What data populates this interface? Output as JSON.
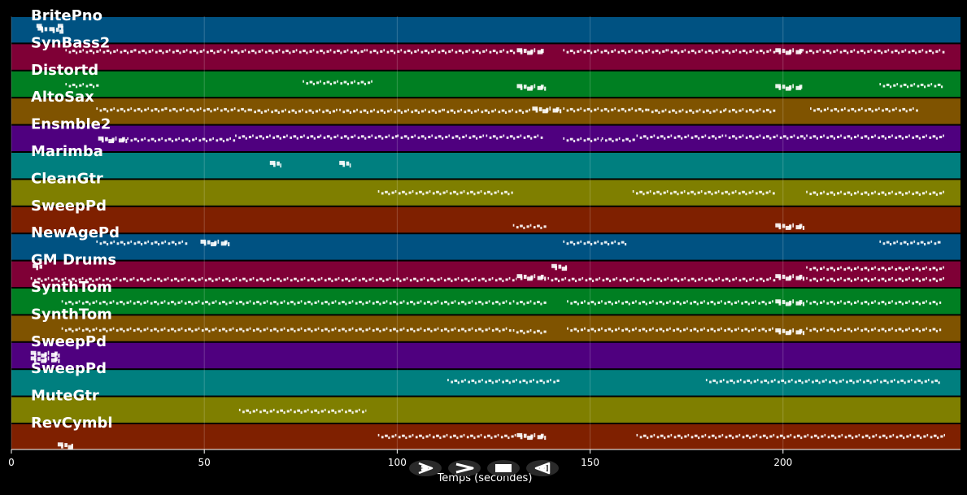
{
  "chart_data": {
    "type": "timeline",
    "xlabel": "Temps (secondes)",
    "xlim": [
      0,
      246
    ],
    "xticks": [
      0,
      50,
      100,
      150,
      200
    ],
    "grid": true,
    "tracks": [
      {
        "name": "BritePno",
        "color": "#005282",
        "notes": [
          [
            6.8,
            9.3,
            0.5
          ],
          [
            9.8,
            13.5,
            0.52
          ],
          [
            12,
            13.5,
            0.4
          ],
          [
            6.5,
            8.4,
            0.4
          ]
        ]
      },
      {
        "name": "SynBass2",
        "color": "#7f0036",
        "notes": [
          [
            14,
            32,
            0.3
          ],
          [
            32,
            56,
            0.3
          ],
          [
            56,
            92,
            0.3
          ],
          [
            92,
            131,
            0.3
          ],
          [
            131,
            138,
            0.3
          ],
          [
            143,
            170,
            0.3
          ],
          [
            170,
            198,
            0.3
          ],
          [
            198,
            205,
            0.3
          ],
          [
            205,
            242,
            0.3
          ]
        ]
      },
      {
        "name": "Distortd",
        "color": "#007f22",
        "notes": [
          [
            14,
            23,
            0.55
          ],
          [
            75.5,
            94,
            0.45
          ],
          [
            131,
            139,
            0.62
          ],
          [
            198,
            205,
            0.62
          ],
          [
            225,
            242,
            0.55
          ]
        ]
      },
      {
        "name": "AltoSax",
        "color": "#7f5300",
        "notes": [
          [
            22,
            40,
            0.45
          ],
          [
            40,
            62,
            0.45
          ],
          [
            62,
            85,
            0.5
          ],
          [
            85,
            112,
            0.5
          ],
          [
            112,
            135,
            0.5
          ],
          [
            135,
            143,
            0.45
          ],
          [
            143,
            165,
            0.45
          ],
          [
            165,
            185,
            0.5
          ],
          [
            185,
            198,
            0.48
          ],
          [
            207,
            235,
            0.45
          ]
        ]
      },
      {
        "name": "Ensmble2",
        "color": "#4f007f",
        "notes": [
          [
            22.5,
            30,
            0.55
          ],
          [
            30,
            58,
            0.55
          ],
          [
            58,
            80,
            0.45
          ],
          [
            80,
            100,
            0.45
          ],
          [
            100,
            123,
            0.45
          ],
          [
            123,
            138,
            0.45
          ],
          [
            143,
            153,
            0.55
          ],
          [
            153,
            162,
            0.55
          ],
          [
            162,
            185,
            0.45
          ],
          [
            185,
            206,
            0.45
          ],
          [
            206,
            242,
            0.45
          ]
        ]
      },
      {
        "name": "Marimba",
        "color": "#007f7f",
        "notes": [
          [
            67,
            70,
            0.45
          ],
          [
            85,
            88,
            0.45
          ]
        ]
      },
      {
        "name": "CleanGtr",
        "color": "#7f7f00",
        "notes": [
          [
            95,
            130,
            0.5
          ],
          [
            161,
            198,
            0.5
          ],
          [
            206,
            242,
            0.52
          ]
        ]
      },
      {
        "name": "SweepPd",
        "color": "#7f2000",
        "notes": [
          [
            130,
            139,
            0.75
          ],
          [
            198,
            206,
            0.75
          ]
        ]
      },
      {
        "name": "NewAgePd",
        "color": "#005282",
        "notes": [
          [
            22,
            46,
            0.35
          ],
          [
            49,
            57,
            0.35
          ],
          [
            143,
            160,
            0.35
          ],
          [
            225,
            241,
            0.35
          ]
        ]
      },
      {
        "name": "GM Drums",
        "color": "#7f0036",
        "notes": [
          [
            5,
            131,
            0.7
          ],
          [
            131,
            139,
            0.62
          ],
          [
            139,
            198,
            0.7
          ],
          [
            198,
            206,
            0.62
          ],
          [
            206,
            242,
            0.7
          ],
          [
            5.5,
            8,
            0.25
          ],
          [
            140,
            144,
            0.25
          ],
          [
            206,
            242,
            0.3
          ]
        ]
      },
      {
        "name": "SynthTom",
        "color": "#007f22",
        "notes": [
          [
            13,
            130,
            0.55
          ],
          [
            130,
            139,
            0.55
          ],
          [
            144,
            198,
            0.55
          ],
          [
            198,
            206,
            0.55
          ],
          [
            206,
            241,
            0.55
          ]
        ]
      },
      {
        "name": "SynthTom",
        "color": "#7f5300",
        "notes": [
          [
            13,
            130,
            0.55
          ],
          [
            130,
            139,
            0.62
          ],
          [
            144,
            198,
            0.55
          ],
          [
            198,
            206,
            0.62
          ],
          [
            206,
            241,
            0.55
          ]
        ]
      },
      {
        "name": "SweepPd",
        "color": "#4f007f",
        "notes": [
          [
            5,
            13,
            0.45
          ],
          [
            5,
            13,
            0.65
          ]
        ]
      },
      {
        "name": "SweepPd",
        "color": "#007f7f",
        "notes": [
          [
            113,
            142,
            0.45
          ],
          [
            180,
            241,
            0.45
          ]
        ]
      },
      {
        "name": "MuteGtr",
        "color": "#7f7f00",
        "notes": [
          [
            59,
            92,
            0.55
          ]
        ]
      },
      {
        "name": "RevCymbl",
        "color": "#7f2000",
        "notes": [
          [
            12,
            16,
            0.82
          ],
          [
            95,
            131,
            0.48
          ],
          [
            131,
            139,
            0.48
          ],
          [
            162,
            242,
            0.48
          ]
        ]
      }
    ]
  },
  "controls": {
    "play": {
      "icon": "play-icon"
    },
    "forward": {
      "icon": "fast-forward-icon"
    },
    "stop": {
      "icon": "stop-icon"
    },
    "rewind": {
      "icon": "rewind-icon"
    }
  }
}
